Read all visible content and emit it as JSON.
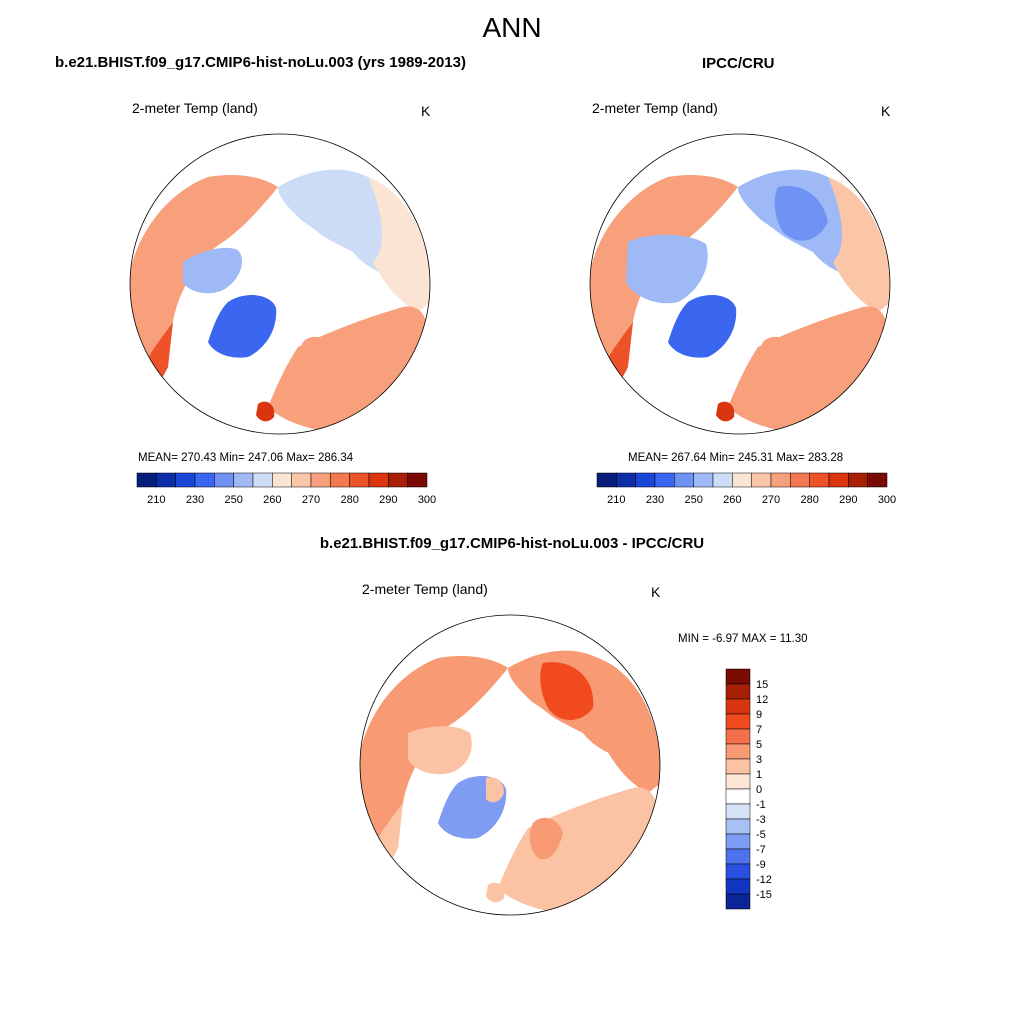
{
  "page": {
    "title": "ANN",
    "variable_label": "2-meter Temp (land)",
    "units": "K"
  },
  "panels": [
    {
      "id": "model",
      "title": "b.e21.BHIST.f09_g17.CMIP6-hist-noLu.003 (yrs 1989-2013)",
      "stats_text": "MEAN= 270.43  Min= 247.06  Max= 286.34",
      "stats": {
        "mean": 270.43,
        "min": 247.06,
        "max": 286.34
      }
    },
    {
      "id": "obs",
      "title": "IPCC/CRU",
      "stats_text": "MEAN= 267.64  Min= 245.31  Max= 283.28",
      "stats": {
        "mean": 267.64,
        "min": 245.31,
        "max": 283.28
      }
    },
    {
      "id": "diff",
      "title": "b.e21.BHIST.f09_g17.CMIP6-hist-noLu.003 - IPCC/CRU",
      "stats_text": "MIN =  -6.97 MAX =  11.30",
      "stats": {
        "min": -6.97,
        "max": 11.3
      }
    }
  ],
  "colorbars": {
    "absolute": {
      "labels": [
        "210",
        "230",
        "250",
        "260",
        "270",
        "280",
        "290",
        "300"
      ],
      "colors": [
        "#081d7a",
        "#0b2ea8",
        "#1a47d8",
        "#3b66f0",
        "#6f92f5",
        "#9fb9f6",
        "#cddcf6",
        "#fbe4d4",
        "#fbc5a8",
        "#f8a07c",
        "#f47850",
        "#ee5228",
        "#d93510",
        "#a81f05",
        "#7a0b03"
      ]
    },
    "difference": {
      "labels": [
        "15",
        "12",
        "9",
        "7",
        "5",
        "3",
        "1",
        "0",
        "-1",
        "-3",
        "-5",
        "-7",
        "-9",
        "-12",
        "-15"
      ],
      "colors": [
        "#7a0b03",
        "#a81f05",
        "#d93510",
        "#f04a1e",
        "#f4704a",
        "#f89a74",
        "#fbc3a3",
        "#fde6d8",
        "#ffffff",
        "#d6e2f8",
        "#a9c0f5",
        "#7d9cf2",
        "#4d73ee",
        "#2a50e0",
        "#1336c0",
        "#0b2496"
      ]
    }
  }
}
